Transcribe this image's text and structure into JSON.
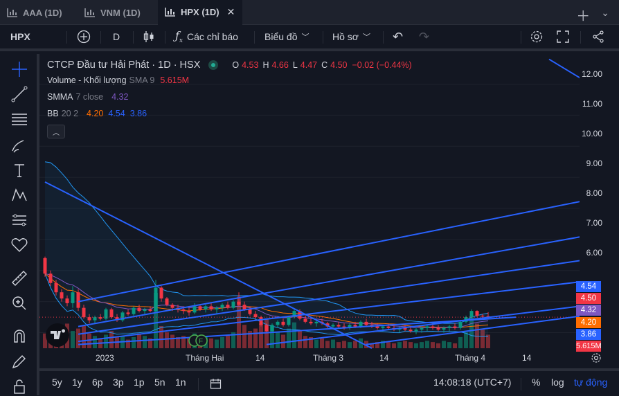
{
  "tabs": [
    {
      "label": "AAA (1D)",
      "active": false
    },
    {
      "label": "VNM (1D)",
      "active": false
    },
    {
      "label": "HPX (1D)",
      "active": true
    }
  ],
  "toolbar": {
    "symbol": "HPX",
    "interval": "D",
    "indicators_label": "Các chỉ báo",
    "chart_type_label": "Biểu đồ",
    "profile_label": "Hồ sơ"
  },
  "legend": {
    "title": "CTCP Đầu tư Hải Phát · 1D · HSX",
    "ohlc": {
      "o_label": "O",
      "o": "4.53",
      "h_label": "H",
      "h": "4.66",
      "l_label": "L",
      "l": "4.47",
      "c_label": "C",
      "c": "4.50",
      "change": "−0.02 (−0.44%)"
    },
    "volume": {
      "name": "Volume - Khối lượng",
      "params": "SMA 9",
      "value": "5.615M"
    },
    "smma": {
      "name": "SMMA",
      "params": "7 close",
      "value": "4.32"
    },
    "bb": {
      "name": "BB",
      "params": "20 2",
      "v1": "4.20",
      "v2": "4.54",
      "v3": "3.86"
    }
  },
  "price_axis": {
    "ticks": [
      "12.00",
      "11.00",
      "10.00",
      "9.00",
      "8.00",
      "7.00",
      "6.00"
    ],
    "labels": [
      {
        "text": "4.54",
        "color": "#2962ff"
      },
      {
        "text": "4.50",
        "color": "#f23645"
      },
      {
        "text": "4.32",
        "color": "#7e57c2"
      },
      {
        "text": "4.20",
        "color": "#ff6d00"
      },
      {
        "text": "3.86",
        "color": "#2962ff"
      },
      {
        "text": "5.615M",
        "color": "#f23645"
      }
    ]
  },
  "time_axis": [
    "2023",
    "Tháng Hai",
    "14",
    "Tháng 3",
    "14",
    "Tháng 4",
    "14"
  ],
  "bottom": {
    "ranges": [
      "5y",
      "1y",
      "6p",
      "3p",
      "1p",
      "5n",
      "1n"
    ],
    "clock": "14:08:18 (UTC+7)",
    "percent_label": "%",
    "log_label": "log",
    "auto_label": "tự động"
  },
  "colors": {
    "up": "#089981",
    "down": "#f23645",
    "bb": "#2962ff",
    "smma": "#7e57c2",
    "basis": "#ff6d00",
    "drawing": "#2962ff"
  },
  "chart_data": {
    "type": "candlestick",
    "ylim": [
      3.5,
      12.3
    ],
    "candles": [
      [
        6.4,
        6.45,
        5.8,
        5.9
      ],
      [
        5.9,
        6.0,
        5.5,
        5.6
      ],
      [
        5.6,
        5.7,
        5.2,
        5.3
      ],
      [
        5.3,
        5.4,
        5.0,
        5.1
      ],
      [
        5.1,
        5.2,
        4.85,
        4.95
      ],
      [
        4.95,
        5.5,
        4.8,
        5.3
      ],
      [
        5.3,
        5.4,
        4.7,
        4.8
      ],
      [
        4.8,
        4.9,
        4.45,
        4.5
      ],
      [
        4.5,
        4.6,
        4.3,
        4.4
      ],
      [
        4.4,
        4.55,
        4.3,
        4.5
      ],
      [
        4.5,
        4.6,
        4.4,
        4.45
      ],
      [
        4.45,
        4.8,
        4.4,
        4.75
      ],
      [
        4.75,
        4.8,
        4.45,
        4.5
      ],
      [
        4.5,
        4.6,
        4.35,
        4.4
      ],
      [
        4.4,
        4.7,
        4.35,
        4.65
      ],
      [
        4.65,
        4.75,
        4.55,
        4.6
      ],
      [
        4.6,
        4.85,
        4.55,
        4.8
      ],
      [
        4.8,
        4.9,
        4.65,
        4.7
      ],
      [
        4.7,
        4.8,
        4.6,
        4.75
      ],
      [
        4.75,
        4.85,
        4.65,
        4.7
      ],
      [
        4.7,
        5.7,
        4.65,
        5.45
      ],
      [
        5.45,
        5.5,
        5.0,
        5.1
      ],
      [
        5.1,
        5.15,
        4.85,
        4.9
      ],
      [
        4.9,
        4.95,
        4.7,
        4.8
      ],
      [
        4.8,
        4.9,
        4.65,
        4.75
      ],
      [
        4.75,
        4.85,
        4.6,
        4.7
      ],
      [
        4.7,
        4.8,
        4.55,
        4.65
      ],
      [
        4.65,
        4.95,
        4.6,
        4.85
      ],
      [
        4.85,
        4.9,
        4.7,
        4.75
      ],
      [
        4.75,
        4.9,
        4.65,
        4.85
      ],
      [
        4.85,
        4.95,
        4.7,
        4.75
      ],
      [
        4.75,
        4.85,
        4.6,
        4.8
      ],
      [
        4.8,
        4.95,
        4.7,
        4.9
      ],
      [
        4.9,
        5.0,
        4.75,
        4.8
      ],
      [
        4.8,
        5.05,
        4.75,
        5.0
      ],
      [
        5.0,
        5.3,
        4.85,
        4.9
      ],
      [
        4.9,
        5.0,
        4.7,
        4.75
      ],
      [
        4.75,
        4.85,
        4.55,
        4.6
      ],
      [
        4.6,
        4.7,
        4.45,
        4.5
      ],
      [
        4.5,
        4.55,
        4.2,
        4.25
      ],
      [
        4.25,
        4.3,
        4.0,
        4.05
      ],
      [
        4.05,
        4.3,
        4.0,
        4.25
      ],
      [
        4.25,
        4.4,
        4.15,
        4.35
      ],
      [
        4.35,
        4.45,
        4.2,
        4.25
      ],
      [
        4.25,
        4.55,
        4.2,
        4.5
      ],
      [
        4.5,
        4.75,
        4.45,
        4.7
      ],
      [
        4.7,
        4.75,
        4.4,
        4.45
      ],
      [
        4.45,
        4.55,
        4.3,
        4.35
      ],
      [
        4.35,
        4.45,
        4.25,
        4.3
      ],
      [
        4.3,
        4.4,
        4.2,
        4.35
      ],
      [
        4.35,
        4.45,
        4.25,
        4.3
      ],
      [
        4.3,
        4.35,
        4.15,
        4.2
      ],
      [
        4.2,
        4.3,
        4.1,
        4.25
      ],
      [
        4.25,
        4.35,
        4.15,
        4.2
      ],
      [
        4.2,
        4.3,
        4.1,
        4.15
      ],
      [
        4.15,
        4.3,
        4.1,
        4.25
      ],
      [
        4.25,
        4.35,
        4.15,
        4.2
      ],
      [
        4.2,
        4.4,
        4.15,
        4.35
      ],
      [
        4.35,
        4.45,
        4.2,
        4.25
      ],
      [
        4.25,
        4.35,
        4.15,
        4.2
      ],
      [
        4.2,
        4.3,
        4.1,
        4.15
      ],
      [
        4.15,
        4.25,
        4.05,
        4.2
      ],
      [
        4.2,
        4.3,
        4.1,
        4.15
      ],
      [
        4.15,
        4.25,
        4.05,
        4.1
      ],
      [
        4.1,
        4.2,
        4.0,
        4.15
      ],
      [
        4.15,
        4.25,
        4.05,
        4.1
      ],
      [
        4.1,
        4.2,
        4.0,
        4.05
      ],
      [
        4.05,
        4.15,
        3.95,
        4.1
      ],
      [
        4.1,
        4.2,
        4.0,
        4.15
      ],
      [
        4.15,
        4.25,
        4.05,
        4.2
      ],
      [
        4.2,
        4.3,
        4.1,
        4.15
      ],
      [
        4.15,
        4.25,
        4.05,
        4.1
      ],
      [
        4.1,
        4.2,
        4.0,
        4.15
      ],
      [
        4.15,
        4.25,
        4.05,
        4.2
      ],
      [
        4.2,
        4.3,
        4.1,
        4.15
      ],
      [
        4.15,
        4.4,
        4.1,
        4.35
      ],
      [
        4.35,
        4.55,
        4.3,
        4.5
      ],
      [
        4.5,
        4.75,
        4.45,
        4.7
      ],
      [
        4.7,
        4.72,
        4.5,
        4.55
      ],
      [
        4.55,
        4.6,
        4.45,
        4.52
      ],
      [
        4.53,
        4.66,
        4.47,
        4.5
      ]
    ],
    "volume": [
      1.2,
      1.5,
      1.1,
      1.3,
      2.0,
      1.4,
      1.6,
      1.8,
      1.2,
      1.0,
      0.8,
      1.1,
      1.4,
      0.9,
      1.0,
      0.7,
      0.9,
      1.2,
      1.0,
      0.8,
      4.5,
      1.8,
      1.3,
      1.1,
      0.9,
      1.0,
      0.8,
      1.2,
      0.9,
      1.0,
      0.8,
      0.7,
      0.9,
      1.1,
      1.3,
      4.2,
      1.9,
      1.4,
      1.6,
      2.0,
      2.4,
      1.8,
      1.3,
      1.1,
      1.6,
      2.1,
      1.4,
      1.0,
      0.9,
      0.7,
      0.8,
      0.6,
      0.7,
      0.5,
      0.6,
      0.5,
      0.6,
      0.8,
      0.6,
      0.4,
      0.5,
      0.6,
      0.5,
      0.4,
      0.5,
      0.6,
      0.5,
      0.4,
      0.5,
      0.6,
      0.5,
      0.4,
      0.6,
      0.5,
      0.4,
      0.9,
      1.3,
      2.6,
      2.0,
      1.5,
      1.1
    ],
    "trend_lines": [
      {
        "p1": [
          0,
          8.85
        ],
        "p2": [
          59,
          3.5
        ]
      },
      {
        "p1": [
          91,
          12.8
        ],
        "p2": [
          104,
          11.4
        ]
      },
      {
        "p1": [
          6,
          5.0
        ],
        "p2": [
          105,
          8.52
        ]
      },
      {
        "p1": [
          6,
          4.2
        ],
        "p2": [
          105,
          7.35
        ]
      },
      {
        "p1": [
          6,
          3.95
        ],
        "p2": [
          108,
          6.62
        ]
      },
      {
        "p1": [
          6,
          3.72
        ],
        "p2": [
          110,
          5.92
        ]
      },
      {
        "p1": [
          40,
          3.62
        ],
        "p2": [
          107,
          5.08
        ]
      },
      {
        "p1": [
          58,
          3.62
        ],
        "p2": [
          107,
          4.78
        ]
      },
      {
        "p1": [
          6,
          3.62
        ],
        "p2": [
          85,
          4.5
        ]
      }
    ]
  }
}
